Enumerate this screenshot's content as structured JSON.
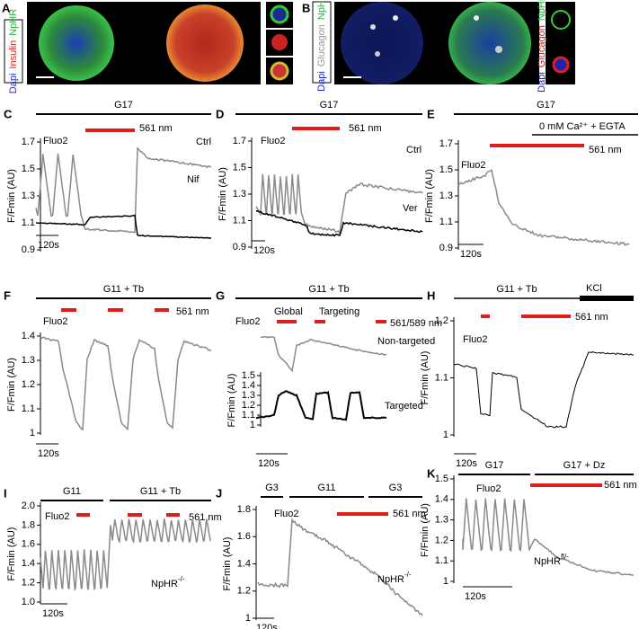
{
  "A": {
    "label": "A",
    "stains": [
      "Dapi",
      "Insulin",
      "NpHR"
    ]
  },
  "B": {
    "label": "B",
    "stains": [
      "Dapi",
      "Glucagon",
      "NpHR"
    ],
    "inset_stains": [
      "Dapi",
      "Glucagon",
      "NpHR"
    ]
  },
  "C": {
    "label": "C",
    "conditions": [
      "G17"
    ],
    "indicator": "Fluo2",
    "laser": "561 nm",
    "y_label": "F/Fmin (AU)",
    "ylim": [
      0.9,
      1.7
    ],
    "yticks": [
      0.9,
      1.1,
      1.3,
      1.5,
      1.7
    ],
    "traces": [
      "Ctrl",
      "Nif"
    ],
    "time_scale": "120s"
  },
  "D": {
    "label": "D",
    "conditions": [
      "G17"
    ],
    "indicator": "Fluo2",
    "laser": "561 nm",
    "y_label": "F/Fmin (AU)",
    "ylim": [
      0.9,
      1.7
    ],
    "yticks": [
      0.9,
      1.1,
      1.3,
      1.5,
      1.7
    ],
    "traces": [
      "Ctrl",
      "Ver"
    ],
    "time_scale": "120s"
  },
  "E": {
    "label": "E",
    "conditions": [
      "G17",
      "0 mM Ca²⁺ + EGTA"
    ],
    "indicator": "Fluo2",
    "laser": "561 nm",
    "y_label": "F/Fmin (AU)",
    "ylim": [
      0.9,
      1.7
    ],
    "yticks": [
      0.9,
      1.1,
      1.3,
      1.5,
      1.7
    ],
    "time_scale": "120s"
  },
  "F": {
    "label": "F",
    "conditions": [
      "G11 + Tb"
    ],
    "indicator": "Fluo2",
    "laser": "561 nm",
    "y_label": "F/Fmin (AU)",
    "ylim": [
      1,
      1.4
    ],
    "yticks": [
      1,
      1.1,
      1.2,
      1.3,
      1.4
    ],
    "time_scale": "120s"
  },
  "G": {
    "label": "G",
    "conditions": [
      "G11 + Tb"
    ],
    "stimulations": [
      "Global",
      "Targeting"
    ],
    "indicator": "Fluo2",
    "laser": "561/589 nm",
    "y_label": "F/Fmin (AU)",
    "ylim": [
      1,
      1.5
    ],
    "yticks": [
      1,
      1.1,
      1.2,
      1.3,
      1.4,
      1.5
    ],
    "traces": [
      "Non-targeted",
      "Targeted"
    ],
    "time_scale": "120s"
  },
  "H": {
    "label": "H",
    "conditions": [
      "G11 + Tb",
      "KCl"
    ],
    "indicator": "Fluo2",
    "laser": "561 nm",
    "y_label": "F/Fmin (AU)",
    "ylim": [
      1,
      1.2
    ],
    "yticks": [
      1,
      1.1,
      1.2
    ],
    "time_scale": "120s"
  },
  "I": {
    "label": "I",
    "conditions": [
      "G11",
      "G11 + Tb"
    ],
    "indicator": "Fluo2",
    "laser": "561 nm",
    "y_label": "F/Fmin (AU)",
    "ylim": [
      1,
      2
    ],
    "yticks": [
      {
        "value": 1,
        "label": "1.0"
      },
      1.2,
      1.4,
      1.6,
      1.8,
      {
        "value": 2,
        "label": "2.0"
      }
    ],
    "genotype": {
      "name": "NpHR",
      "sup": "-/-"
    },
    "time_scale": "120s"
  },
  "J": {
    "label": "J",
    "conditions": [
      "G3",
      "G11",
      "G3"
    ],
    "indicator": "Fluo2",
    "laser": "561 nm",
    "y_label": "F/Fmin (AU)",
    "ylim": [
      1,
      1.8
    ],
    "yticks": [
      1,
      1.2,
      1.4,
      1.6,
      1.8
    ],
    "genotype": {
      "name": "NpHR",
      "sup": "-/-"
    },
    "time_scale": "120s"
  },
  "K": {
    "label": "K",
    "conditions": [
      "G17",
      "G17 + Dz"
    ],
    "indicator": "Fluo2",
    "laser": "561 nm",
    "y_label": "F/Fmin (AU)",
    "ylim": [
      1,
      1.5
    ],
    "yticks": [
      1,
      1.1,
      1.2,
      1.3,
      1.4,
      1.5
    ],
    "genotype": {
      "name": "NpHR",
      "sup": "fl/-"
    },
    "time_scale": "120s"
  }
}
